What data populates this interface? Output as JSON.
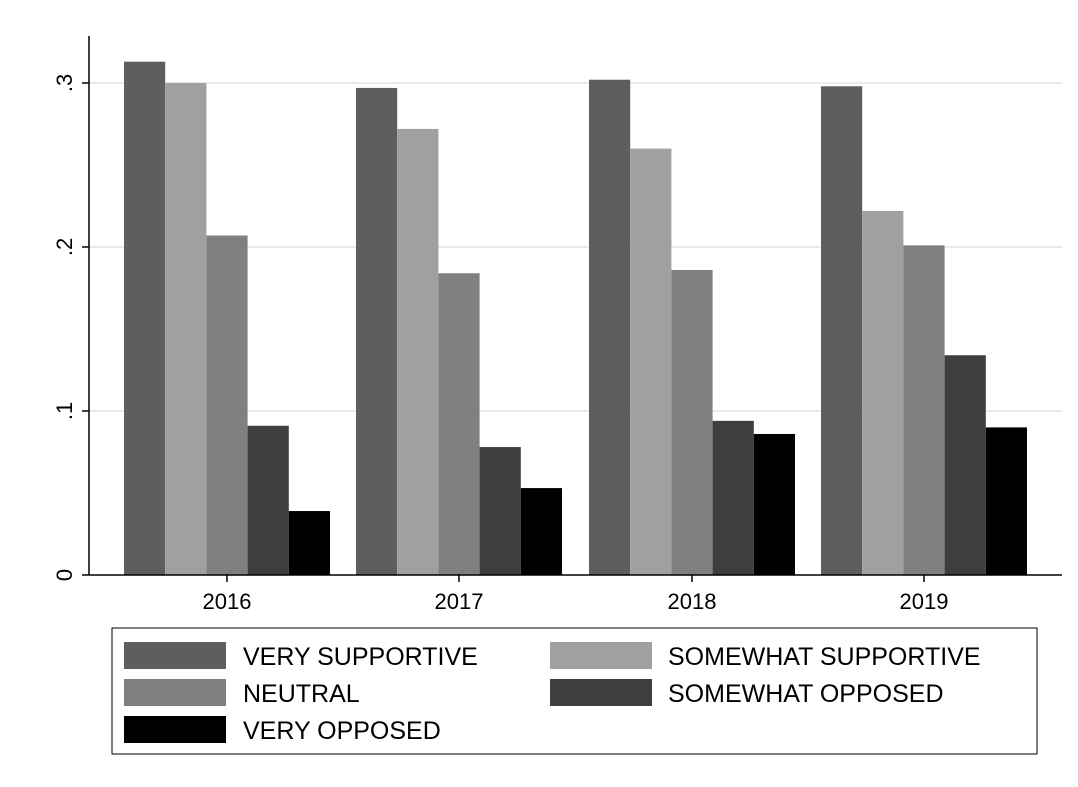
{
  "chart_data": {
    "type": "bar",
    "title": "",
    "xlabel": "",
    "ylabel": "",
    "categories": [
      "2016",
      "2017",
      "2018",
      "2019"
    ],
    "ylim": [
      0,
      0.33
    ],
    "yticks": [
      {
        "value": 0,
        "label": "0"
      },
      {
        "value": 0.1,
        "label": ".1"
      },
      {
        "value": 0.2,
        "label": ".2"
      },
      {
        "value": 0.3,
        "label": ".3"
      }
    ],
    "grid": true,
    "legend_position": "bottom",
    "series": [
      {
        "name": "VERY SUPPORTIVE",
        "color": "#5e5e5e",
        "values": [
          0.313,
          0.297,
          0.302,
          0.298
        ]
      },
      {
        "name": "SOMEWHAT SUPPORTIVE",
        "color": "#a0a0a0",
        "values": [
          0.3,
          0.272,
          0.26,
          0.222
        ]
      },
      {
        "name": "NEUTRAL",
        "color": "#808080",
        "values": [
          0.207,
          0.184,
          0.186,
          0.201
        ]
      },
      {
        "name": "SOMEWHAT OPPOSED",
        "color": "#3e3e3e",
        "values": [
          0.091,
          0.078,
          0.094,
          0.134
        ]
      },
      {
        "name": "VERY OPPOSED",
        "color": "#000000",
        "values": [
          0.039,
          0.053,
          0.086,
          0.09
        ]
      }
    ]
  }
}
